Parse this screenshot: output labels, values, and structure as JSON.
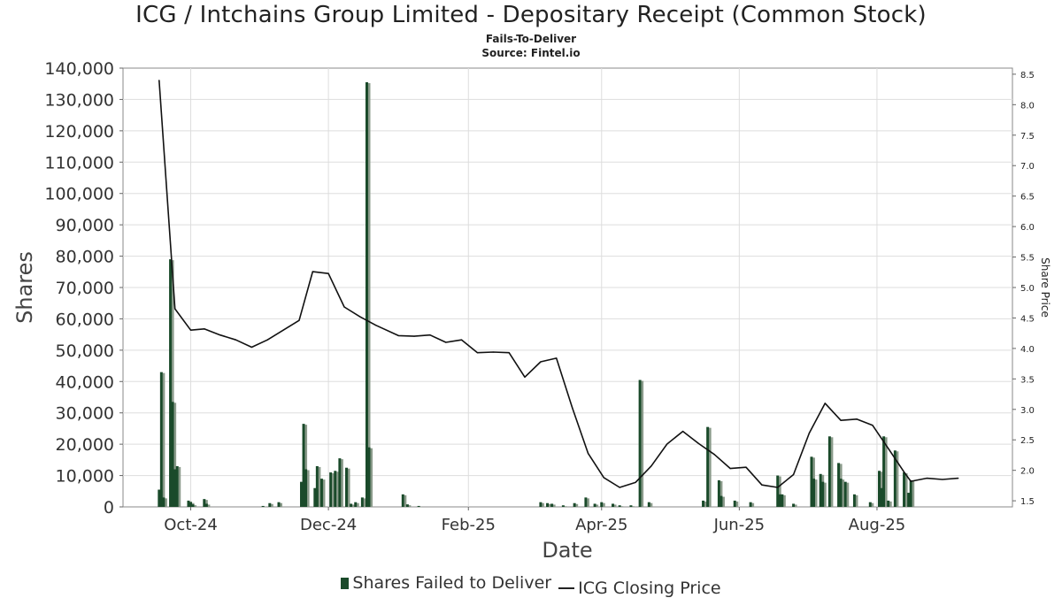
{
  "header": {
    "title": "ICG / Intchains Group Limited - Depositary Receipt (Common Stock)",
    "subtitle": "Fails-To-Deliver",
    "source": "Source: Fintel.io"
  },
  "legend": {
    "bars_label": "Shares Failed to Deliver",
    "line_label": "ICG Closing Price"
  },
  "colors": {
    "bar_dark": "#1a4a2a",
    "bar_light": "#8a9a8a",
    "line": "#111111",
    "grid": "#dddddd",
    "frame": "#888888"
  },
  "chart_data": {
    "type": "bar",
    "title": "ICG / Intchains Group Limited - Depositary Receipt (Common Stock)",
    "subtitle": "Fails-To-Deliver",
    "xlabel": "Date",
    "ylabel": "Shares",
    "y2label": "Share Price",
    "ylim": [
      0,
      140000
    ],
    "y2lim": [
      1.4,
      8.6
    ],
    "xlim": [
      "2024-09-01",
      "2025-09-30"
    ],
    "yticks": [
      "0",
      "10,000",
      "20,000",
      "30,000",
      "40,000",
      "50,000",
      "60,000",
      "70,000",
      "80,000",
      "90,000",
      "100,000",
      "110,000",
      "120,000",
      "130,000",
      "140,000"
    ],
    "y2ticks": [
      "1.5",
      "2.0",
      "2.5",
      "3.0",
      "3.5",
      "4.0",
      "4.5",
      "5.0",
      "5.5",
      "6.0",
      "6.5",
      "7.0",
      "7.5",
      "8.0",
      "8.5"
    ],
    "xticks": [
      {
        "label": "Oct-24",
        "date": "2024-10-01"
      },
      {
        "label": "Dec-24",
        "date": "2024-12-01"
      },
      {
        "label": "Feb-25",
        "date": "2025-02-01"
      },
      {
        "label": "Apr-25",
        "date": "2025-04-01"
      },
      {
        "label": "Jun-25",
        "date": "2025-06-01"
      },
      {
        "label": "Aug-25",
        "date": "2025-08-01"
      }
    ],
    "grid": true,
    "legend_position": "bottom",
    "series": [
      {
        "name": "Shares Failed to Deliver",
        "type": "bar",
        "axis": "left",
        "points": [
          {
            "date": "2024-09-17",
            "value": 5500
          },
          {
            "date": "2024-09-18",
            "value": 43000
          },
          {
            "date": "2024-09-19",
            "value": 3000
          },
          {
            "date": "2024-09-22",
            "value": 79000
          },
          {
            "date": "2024-09-23",
            "value": 33500
          },
          {
            "date": "2024-09-24",
            "value": 12000
          },
          {
            "date": "2024-09-25",
            "value": 13000
          },
          {
            "date": "2024-09-30",
            "value": 2000
          },
          {
            "date": "2024-10-01",
            "value": 1500
          },
          {
            "date": "2024-10-02",
            "value": 800
          },
          {
            "date": "2024-10-07",
            "value": 2500
          },
          {
            "date": "2024-10-08",
            "value": 1000
          },
          {
            "date": "2024-11-02",
            "value": 300
          },
          {
            "date": "2024-11-05",
            "value": 1200
          },
          {
            "date": "2024-11-09",
            "value": 1500
          },
          {
            "date": "2024-11-19",
            "value": 8000
          },
          {
            "date": "2024-11-20",
            "value": 26500
          },
          {
            "date": "2024-11-21",
            "value": 12000
          },
          {
            "date": "2024-11-25",
            "value": 6000
          },
          {
            "date": "2024-11-26",
            "value": 13000
          },
          {
            "date": "2024-11-28",
            "value": 9000
          },
          {
            "date": "2024-12-02",
            "value": 11000
          },
          {
            "date": "2024-12-04",
            "value": 11500
          },
          {
            "date": "2024-12-06",
            "value": 15500
          },
          {
            "date": "2024-12-09",
            "value": 12500
          },
          {
            "date": "2024-12-11",
            "value": 1000
          },
          {
            "date": "2024-12-13",
            "value": 1500
          },
          {
            "date": "2024-12-16",
            "value": 3000
          },
          {
            "date": "2024-12-18",
            "value": 135500
          },
          {
            "date": "2024-12-19",
            "value": 19000
          },
          {
            "date": "2025-01-03",
            "value": 4000
          },
          {
            "date": "2025-01-05",
            "value": 800
          },
          {
            "date": "2025-01-10",
            "value": 300
          },
          {
            "date": "2025-03-05",
            "value": 1500
          },
          {
            "date": "2025-03-08",
            "value": 1200
          },
          {
            "date": "2025-03-10",
            "value": 1000
          },
          {
            "date": "2025-03-15",
            "value": 500
          },
          {
            "date": "2025-03-20",
            "value": 1200
          },
          {
            "date": "2025-03-25",
            "value": 3000
          },
          {
            "date": "2025-03-29",
            "value": 1000
          },
          {
            "date": "2025-04-01",
            "value": 1500
          },
          {
            "date": "2025-04-06",
            "value": 1000
          },
          {
            "date": "2025-04-09",
            "value": 500
          },
          {
            "date": "2025-04-14",
            "value": 500
          },
          {
            "date": "2025-04-18",
            "value": 40500
          },
          {
            "date": "2025-04-22",
            "value": 1500
          },
          {
            "date": "2025-05-16",
            "value": 2000
          },
          {
            "date": "2025-05-18",
            "value": 25500
          },
          {
            "date": "2025-05-23",
            "value": 8500
          },
          {
            "date": "2025-05-24",
            "value": 3500
          },
          {
            "date": "2025-05-30",
            "value": 2000
          },
          {
            "date": "2025-06-06",
            "value": 1500
          },
          {
            "date": "2025-06-18",
            "value": 10000
          },
          {
            "date": "2025-06-19",
            "value": 4000
          },
          {
            "date": "2025-06-20",
            "value": 4000
          },
          {
            "date": "2025-06-25",
            "value": 1000
          },
          {
            "date": "2025-07-03",
            "value": 16000
          },
          {
            "date": "2025-07-04",
            "value": 9000
          },
          {
            "date": "2025-07-07",
            "value": 10500
          },
          {
            "date": "2025-07-08",
            "value": 8000
          },
          {
            "date": "2025-07-11",
            "value": 22500
          },
          {
            "date": "2025-07-15",
            "value": 14000
          },
          {
            "date": "2025-07-16",
            "value": 9000
          },
          {
            "date": "2025-07-18",
            "value": 8000
          },
          {
            "date": "2025-07-22",
            "value": 4000
          },
          {
            "date": "2025-07-29",
            "value": 1500
          },
          {
            "date": "2025-08-02",
            "value": 11500
          },
          {
            "date": "2025-08-03",
            "value": 6000
          },
          {
            "date": "2025-08-04",
            "value": 22500
          },
          {
            "date": "2025-08-06",
            "value": 2000
          },
          {
            "date": "2025-08-09",
            "value": 18000
          },
          {
            "date": "2025-08-13",
            "value": 11000
          },
          {
            "date": "2025-08-15",
            "value": 4500
          },
          {
            "date": "2025-08-16",
            "value": 8500
          }
        ]
      },
      {
        "name": "ICG Closing Price",
        "type": "line",
        "axis": "right",
        "points": [
          {
            "date": "2024-09-17",
            "value": 8.4
          },
          {
            "date": "2024-09-24",
            "value": 4.65
          },
          {
            "date": "2024-10-01",
            "value": 4.3
          },
          {
            "date": "2024-10-07",
            "value": 4.32
          },
          {
            "date": "2024-10-14",
            "value": 4.22
          },
          {
            "date": "2024-10-21",
            "value": 4.14
          },
          {
            "date": "2024-10-28",
            "value": 4.02
          },
          {
            "date": "2024-11-04",
            "value": 4.14
          },
          {
            "date": "2024-11-11",
            "value": 4.3
          },
          {
            "date": "2024-11-18",
            "value": 4.46
          },
          {
            "date": "2024-11-24",
            "value": 5.26
          },
          {
            "date": "2024-12-01",
            "value": 5.23
          },
          {
            "date": "2024-12-08",
            "value": 4.68
          },
          {
            "date": "2024-12-15",
            "value": 4.52
          },
          {
            "date": "2024-12-22",
            "value": 4.38
          },
          {
            "date": "2025-01-01",
            "value": 4.21
          },
          {
            "date": "2025-01-08",
            "value": 4.2
          },
          {
            "date": "2025-01-15",
            "value": 4.22
          },
          {
            "date": "2025-01-22",
            "value": 4.1
          },
          {
            "date": "2025-01-29",
            "value": 4.14
          },
          {
            "date": "2025-02-05",
            "value": 3.93
          },
          {
            "date": "2025-02-12",
            "value": 3.94
          },
          {
            "date": "2025-02-19",
            "value": 3.93
          },
          {
            "date": "2025-02-26",
            "value": 3.53
          },
          {
            "date": "2025-03-05",
            "value": 3.78
          },
          {
            "date": "2025-03-12",
            "value": 3.84
          },
          {
            "date": "2025-03-19",
            "value": 3.03
          },
          {
            "date": "2025-03-26",
            "value": 2.28
          },
          {
            "date": "2025-04-02",
            "value": 1.88
          },
          {
            "date": "2025-04-09",
            "value": 1.72
          },
          {
            "date": "2025-04-16",
            "value": 1.8
          },
          {
            "date": "2025-04-23",
            "value": 2.07
          },
          {
            "date": "2025-04-30",
            "value": 2.43
          },
          {
            "date": "2025-05-07",
            "value": 2.64
          },
          {
            "date": "2025-05-14",
            "value": 2.44
          },
          {
            "date": "2025-05-21",
            "value": 2.26
          },
          {
            "date": "2025-05-28",
            "value": 2.03
          },
          {
            "date": "2025-06-04",
            "value": 2.05
          },
          {
            "date": "2025-06-11",
            "value": 1.76
          },
          {
            "date": "2025-06-18",
            "value": 1.72
          },
          {
            "date": "2025-06-25",
            "value": 1.93
          },
          {
            "date": "2025-07-02",
            "value": 2.61
          },
          {
            "date": "2025-07-09",
            "value": 3.1
          },
          {
            "date": "2025-07-16",
            "value": 2.82
          },
          {
            "date": "2025-07-23",
            "value": 2.84
          },
          {
            "date": "2025-07-30",
            "value": 2.74
          },
          {
            "date": "2025-08-06",
            "value": 2.36
          },
          {
            "date": "2025-08-13",
            "value": 1.97
          },
          {
            "date": "2025-08-16",
            "value": 1.82
          },
          {
            "date": "2025-08-23",
            "value": 1.87
          },
          {
            "date": "2025-08-30",
            "value": 1.85
          },
          {
            "date": "2025-09-06",
            "value": 1.87
          }
        ]
      }
    ]
  }
}
